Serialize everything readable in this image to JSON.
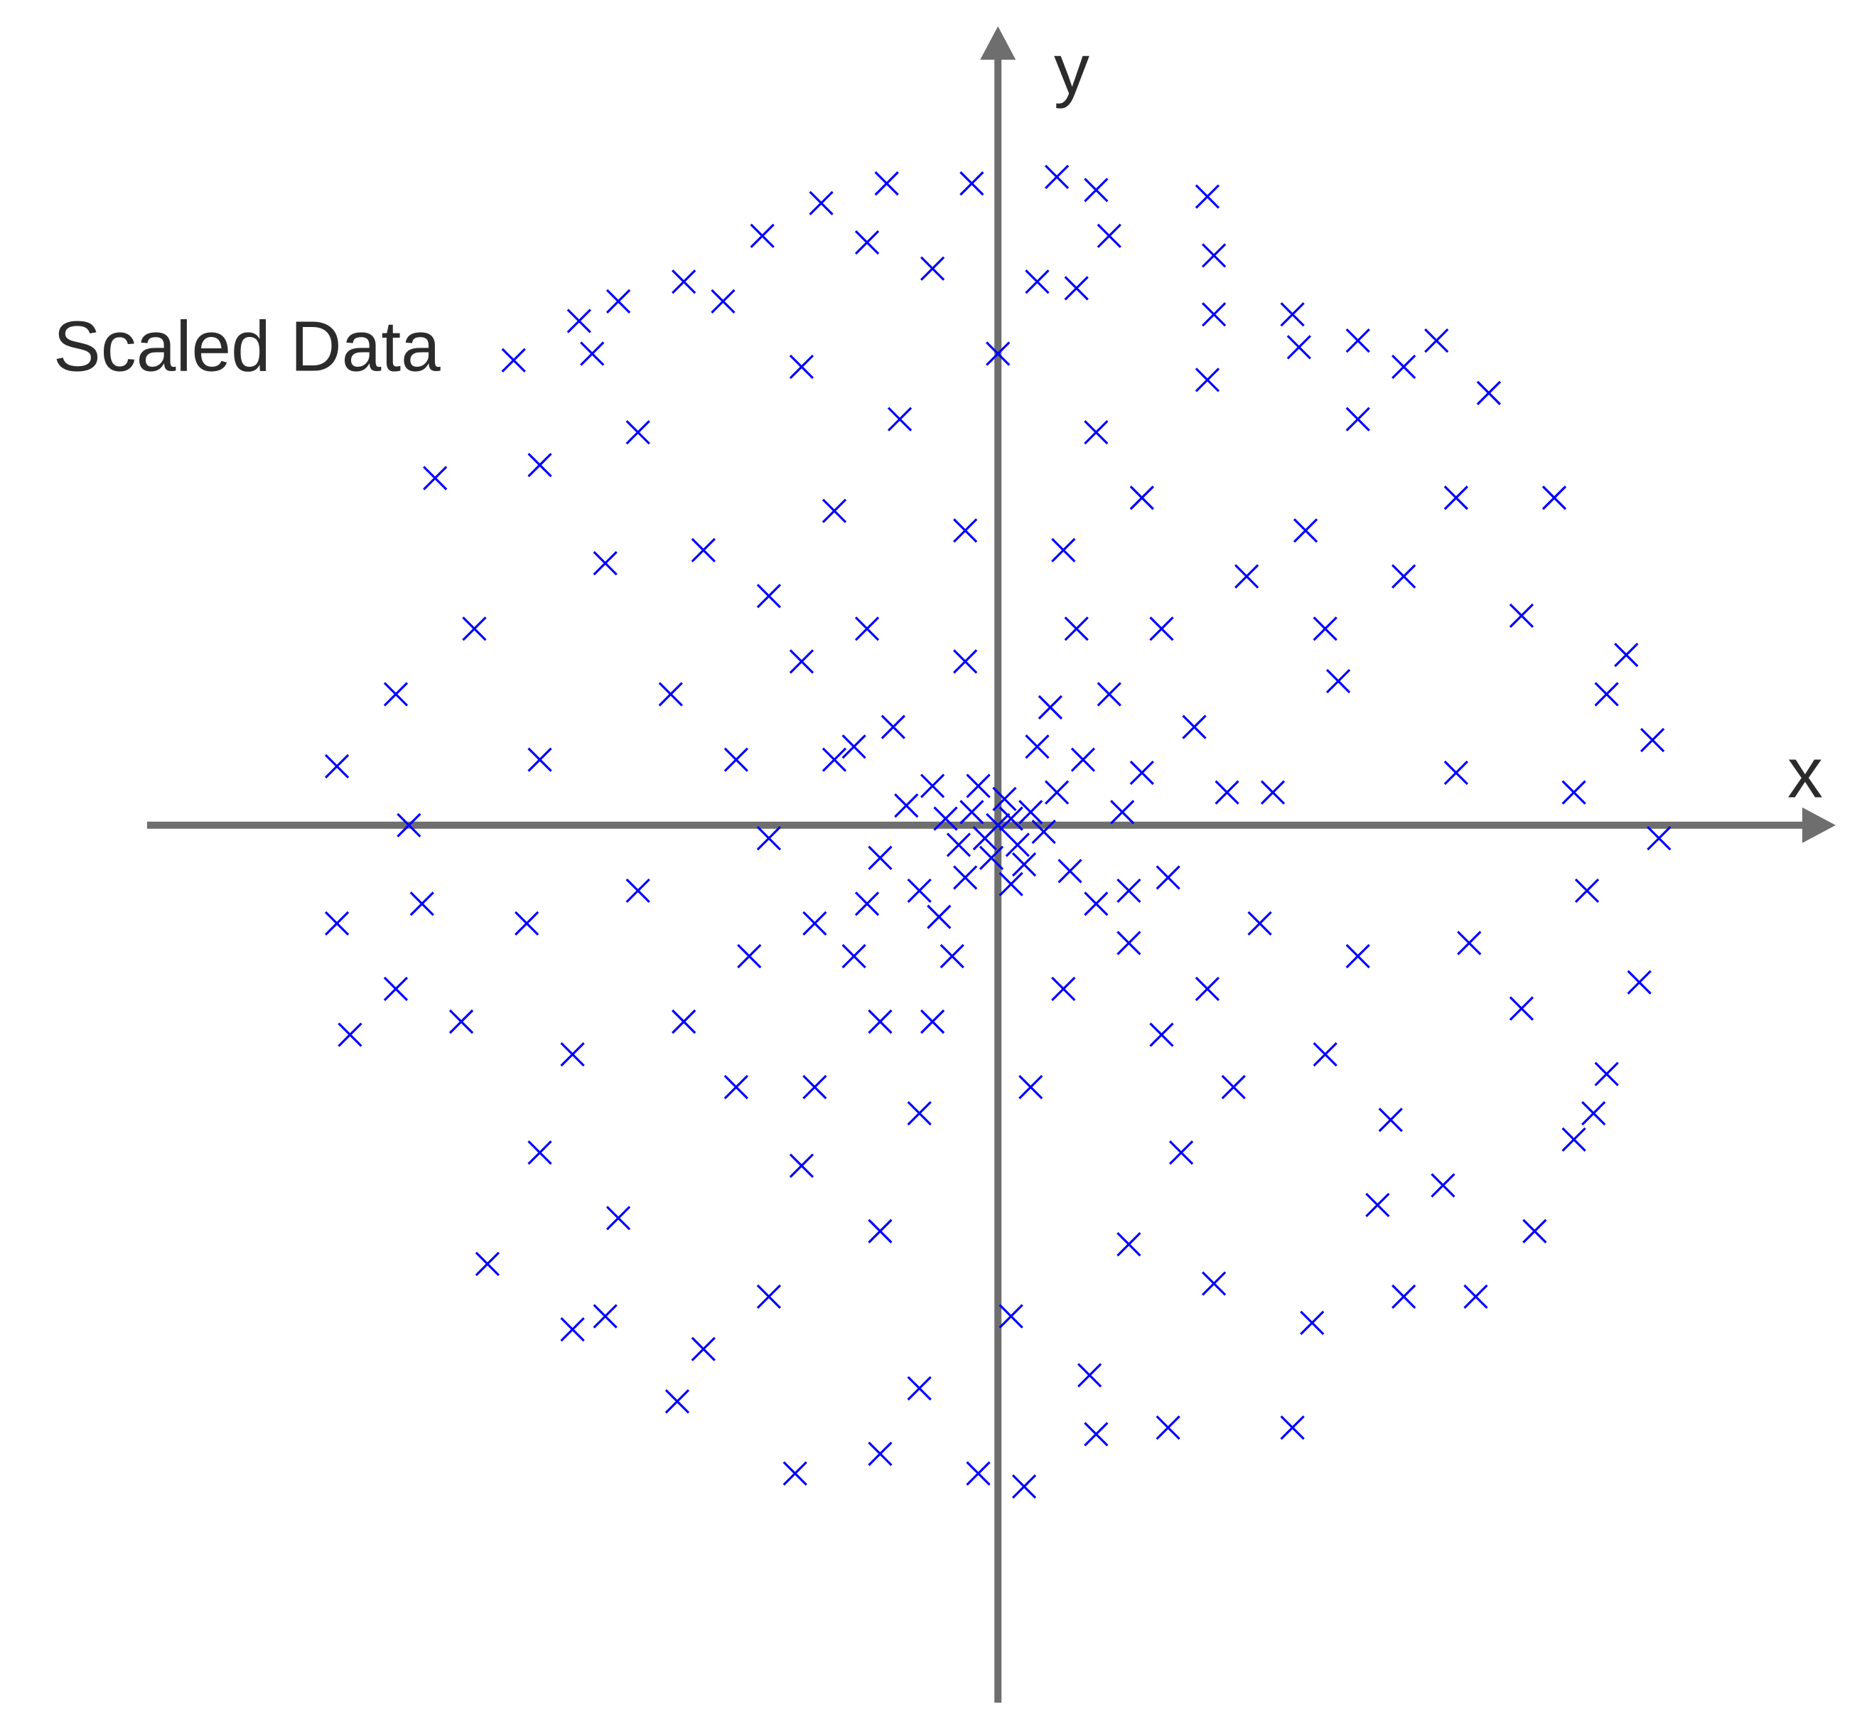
{
  "chart_data": {
    "type": "scatter",
    "title": "Scaled Data",
    "xlabel": "x",
    "ylabel": "y",
    "color": "#0000ff",
    "xlim": [
      -1.3,
      1.28
    ],
    "ylim": [
      -1.34,
      1.22
    ],
    "x": [
      -0.17,
      0.09,
      -0.04,
      0.32,
      0.15,
      -0.27,
      -0.36,
      -0.2,
      0.17,
      0.33,
      0.33,
      0.06,
      -0.48,
      -0.58,
      -0.64,
      -0.74,
      -0.86,
      -1.01,
      -1.01,
      -0.99,
      1.01,
      1.0,
      0.96,
      0.98,
      0.93,
      0.85,
      0.75,
      0.67,
      0.55,
      0.46,
      0.04,
      -0.03,
      -0.31,
      -0.18,
      0.15,
      0.26,
      0.45,
      -0.49,
      -0.65,
      -0.78,
      0.73,
      0.82,
      0.91,
      0.88,
      0,
      0.02,
      -0.02,
      0.03,
      -0.04,
      0.01,
      -0.01,
      0.05,
      -0.06,
      0.04,
      -0.03,
      0.07,
      -0.08,
      0.02,
      -0.05,
      0.09,
      -0.1,
      0.11,
      -0.12,
      0.06,
      -0.14,
      0.15,
      -0.09,
      0.13,
      -0.18,
      0.19,
      -0.16,
      0.2,
      -0.22,
      0.17,
      -0.25,
      0.26,
      0.1,
      -0.05,
      -0.28,
      0.3,
      -0.3,
      0.25,
      -0.18,
      0.32,
      -0.4,
      0.42,
      -0.38,
      0.4,
      -0.35,
      0.38,
      -0.4,
      0.36,
      0.1,
      -0.12,
      0.05,
      -0.05,
      0.22,
      -0.25,
      0.28,
      -0.3,
      -0.5,
      0.52,
      -0.55,
      0.55,
      -0.48,
      0.5,
      -0.45,
      0.47,
      -0.6,
      0.62,
      -0.65,
      0.6,
      -0.7,
      0.7,
      -0.72,
      0.72,
      -0.3,
      0.32,
      -0.35,
      0.33,
      0,
      0.02,
      -0.15,
      0.15,
      -0.18,
      0.2,
      -0.8,
      0.8,
      -0.82,
      0.8,
      -0.55,
      0.55,
      -0.58,
      0.58,
      -0.9,
      0.88,
      -0.88,
      0.9,
      -0.42,
      0.45,
      -0.45,
      0.48,
      -0.1,
      0.12,
      -0.12,
      0.14,
      -0.7,
      0.7,
      -0.7,
      0.68,
      -0.92,
      0.93,
      -0.92,
      0.62,
      -0.62,
      -0.6,
      0.62,
      0.5,
      -0.2,
      0.25,
      -0.28,
      0.12,
      -0.1,
      0.35,
      -0.35,
      0.08,
      -0.07,
      0.22,
      -0.22,
      0.2,
      -0.2
    ],
    "y": [
      0.98,
      0.99,
      0.98,
      0.96,
      0.97,
      0.95,
      0.9,
      0.89,
      0.9,
      0.87,
      0.78,
      0.83,
      0.83,
      0.8,
      0.77,
      0.71,
      0.53,
      0.09,
      -0.15,
      -0.32,
      -0.02,
      0.13,
      0.26,
      -0.24,
      -0.38,
      0.5,
      0.66,
      0.74,
      0.74,
      0.73,
      -1.01,
      -0.99,
      -0.99,
      -0.96,
      -0.93,
      -0.92,
      -0.92,
      -0.88,
      -0.77,
      -0.67,
      -0.72,
      -0.62,
      -0.44,
      -0.48,
      0,
      0.01,
      -0.02,
      -0.03,
      0.02,
      0.04,
      -0.05,
      0.02,
      -0.03,
      -0.06,
      0.06,
      -0.01,
      0.01,
      -0.09,
      -0.08,
      0.05,
      0.06,
      -0.07,
      -0.1,
      0.12,
      0.03,
      -0.12,
      -0.14,
      0.1,
      -0.05,
      0.02,
      0.15,
      -0.18,
      -0.2,
      0.2,
      0.1,
      -0.08,
      -0.25,
      0.25,
      -0.15,
      0.15,
      0.25,
      0.3,
      -0.3,
      -0.25,
      0.1,
      0.05,
      -0.2,
      -0.15,
      0.35,
      0.38,
      -0.4,
      -0.4,
      0.42,
      -0.44,
      -0.4,
      0.45,
      0.5,
      0.48,
      -0.5,
      -0.52,
      0.2,
      0.22,
      -0.1,
      -0.2,
      -0.3,
      -0.35,
      0.42,
      0.45,
      0.4,
      0.38,
      -0.35,
      -0.45,
      0.1,
      0.08,
      -0.15,
      -0.18,
      0.7,
      0.68,
      -0.72,
      -0.7,
      0.72,
      -0.75,
      0.62,
      0.6,
      -0.62,
      -0.64,
      0.3,
      0.32,
      -0.3,
      -0.28,
      0.6,
      0.62,
      -0.6,
      -0.58,
      0,
      0.05,
      -0.12,
      -0.1,
      0.8,
      0.78,
      -0.8,
      -0.76,
      0.85,
      0.82,
      -0.86,
      -0.84,
      0.55,
      0.5,
      -0.5,
      -0.55,
      0.2,
      0.2,
      -0.25,
      0.7,
      0.72,
      -0.75,
      -0.72,
      0.3,
      0.3,
      -0.32,
      -0.4,
      0.3,
      -0.3,
      0.05,
      -0.02,
      0.18,
      -0.2,
      0.08,
      0.12,
      -0.1,
      -0.12
    ]
  }
}
